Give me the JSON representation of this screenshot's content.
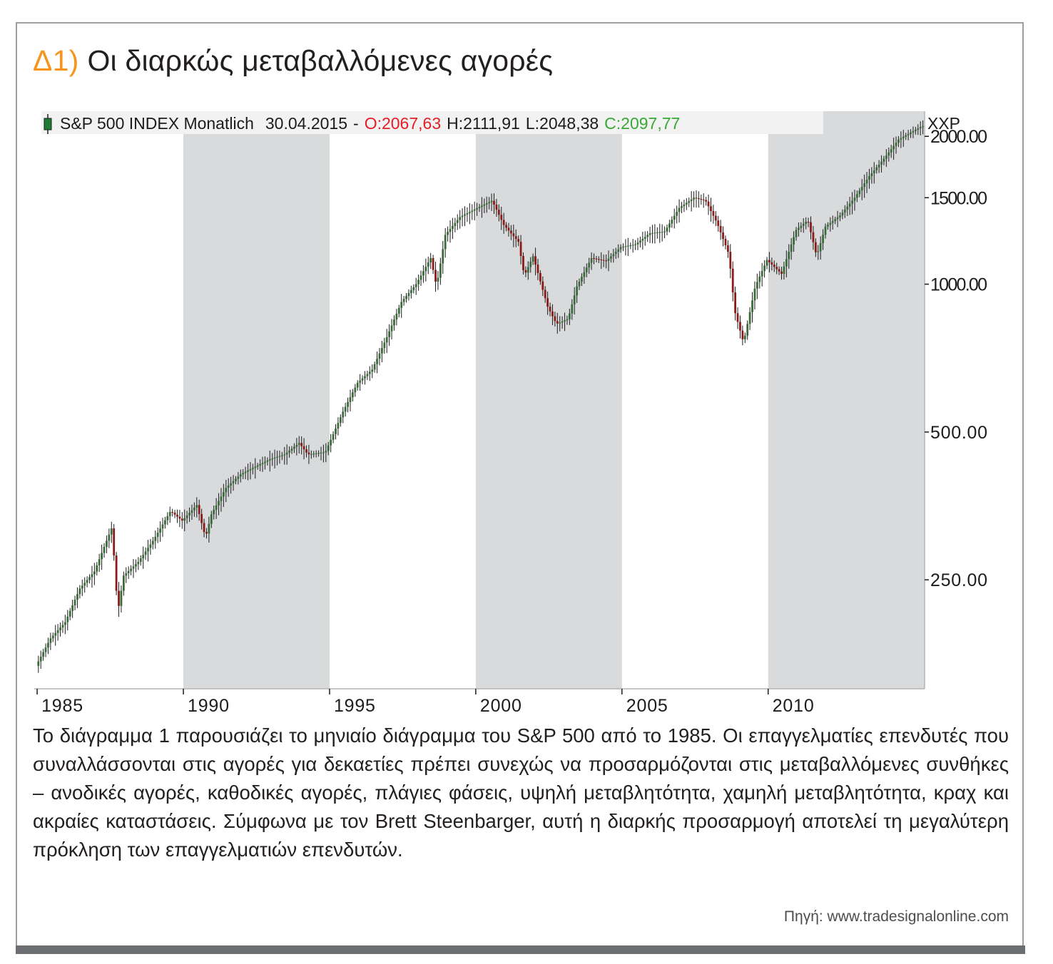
{
  "figure": {
    "number": "Δ1)",
    "title": "Οι διαρκώς μεταβαλλόμενες αγορές",
    "caption": "Το διάγραμμα 1 παρουσιάζει το μηνιαίο διάγραμμα του S&P 500 από το 1985. Οι επαγγελματίες επενδυτές που συναλλάσσονται στις αγορές για δεκαετίες πρέπει συνεχώς να προσαρμόζονται στις μεταβαλλόμενες συνθήκες – ανοδικές αγορές, καθοδικές αγορές, πλάγιες φάσεις, υψηλή μεταβλητότητα, χαμηλή μεταβλητότητα, κραχ και ακραίες καταστάσεις. Σύμφωνα με τον Brett Steenbarger, αυτή η διαρκής προσαρμογή αποτελεί τη μεγαλύτερη πρόκληση των επαγγελματιών επενδυτών.",
    "source": "Πηγή: www.tradesignalonline.com"
  },
  "chart_data": {
    "type": "line",
    "style": "candlestick",
    "title": "S&P 500 INDEX Monatlich",
    "header": {
      "name": "S&P 500 INDEX Monatlich",
      "date": "30.04.2015",
      "sep": "-",
      "open": "O:2067,63",
      "high": "H:2111,91",
      "low": "L:2048,38",
      "close": "C:2097,77"
    },
    "symbol": "XXP",
    "y_scale": "log",
    "ylim": [
      150,
      2250
    ],
    "xlim": [
      1984.9,
      2015.35
    ],
    "y_ticks": [
      "2000.00",
      "1500.00",
      "1000.00",
      "500.00",
      "250.00"
    ],
    "y_tick_values": [
      2000,
      1500,
      1000,
      500,
      250
    ],
    "x_ticks": [
      "1985",
      "1990",
      "1995",
      "2000",
      "2005",
      "2010"
    ],
    "x_tick_values": [
      1985,
      1990,
      1995,
      2000,
      2005,
      2010
    ],
    "shaded_periods": [
      [
        1990,
        1995
      ],
      [
        2000,
        2005
      ],
      [
        2010,
        2015.35
      ]
    ],
    "series": [
      {
        "values": [
          [
            1985.0,
            167
          ],
          [
            1985.5,
            190
          ],
          [
            1986.0,
            205
          ],
          [
            1986.5,
            240
          ],
          [
            1987.0,
            260
          ],
          [
            1987.6,
            320
          ],
          [
            1987.8,
            215
          ],
          [
            1988.0,
            255
          ],
          [
            1988.5,
            272
          ],
          [
            1989.0,
            300
          ],
          [
            1989.6,
            345
          ],
          [
            1990.0,
            330
          ],
          [
            1990.5,
            355
          ],
          [
            1990.8,
            305
          ],
          [
            1991.0,
            340
          ],
          [
            1991.5,
            385
          ],
          [
            1992.0,
            410
          ],
          [
            1992.5,
            425
          ],
          [
            1993.0,
            440
          ],
          [
            1993.5,
            450
          ],
          [
            1994.0,
            475
          ],
          [
            1994.3,
            450
          ],
          [
            1994.9,
            455
          ],
          [
            1995.5,
            550
          ],
          [
            1996.0,
            630
          ],
          [
            1996.5,
            670
          ],
          [
            1997.0,
            780
          ],
          [
            1997.5,
            920
          ],
          [
            1998.0,
            1000
          ],
          [
            1998.5,
            1130
          ],
          [
            1998.7,
            990
          ],
          [
            1999.0,
            1260
          ],
          [
            1999.5,
            1370
          ],
          [
            2000.0,
            1420
          ],
          [
            2000.6,
            1480
          ],
          [
            2001.0,
            1320
          ],
          [
            2001.5,
            1220
          ],
          [
            2001.7,
            1040
          ],
          [
            2002.0,
            1140
          ],
          [
            2002.5,
            900
          ],
          [
            2002.8,
            830
          ],
          [
            2003.2,
            850
          ],
          [
            2003.5,
            990
          ],
          [
            2004.0,
            1130
          ],
          [
            2004.5,
            1115
          ],
          [
            2005.0,
            1190
          ],
          [
            2005.5,
            1205
          ],
          [
            2006.0,
            1270
          ],
          [
            2006.5,
            1280
          ],
          [
            2007.0,
            1430
          ],
          [
            2007.5,
            1500
          ],
          [
            2007.9,
            1480
          ],
          [
            2008.3,
            1330
          ],
          [
            2008.7,
            1150
          ],
          [
            2008.9,
            880
          ],
          [
            2009.2,
            760
          ],
          [
            2009.6,
            990
          ],
          [
            2010.0,
            1120
          ],
          [
            2010.5,
            1050
          ],
          [
            2011.0,
            1290
          ],
          [
            2011.4,
            1350
          ],
          [
            2011.7,
            1140
          ],
          [
            2012.0,
            1310
          ],
          [
            2012.5,
            1380
          ],
          [
            2013.0,
            1500
          ],
          [
            2013.5,
            1660
          ],
          [
            2014.0,
            1800
          ],
          [
            2014.5,
            1970
          ],
          [
            2015.0,
            2050
          ],
          [
            2015.3,
            2097
          ]
        ]
      }
    ],
    "colors": {
      "shade": "#d9dadb",
      "candle_up": "#3a6b3a",
      "candle_down": "#8b1a1a",
      "open": "#e31e24",
      "close": "#39a935"
    }
  }
}
